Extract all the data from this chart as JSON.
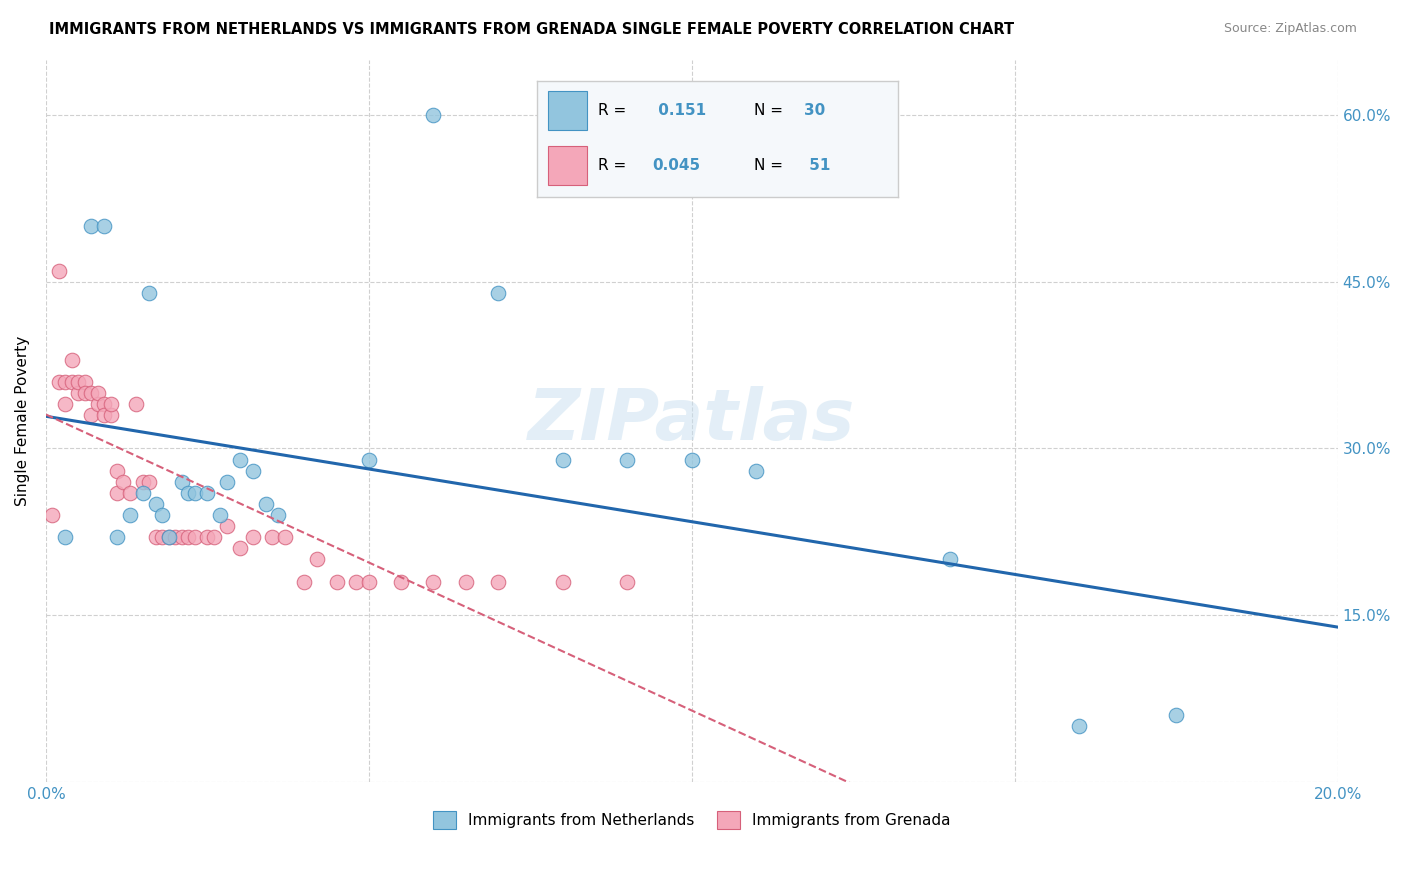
{
  "title": "IMMIGRANTS FROM NETHERLANDS VS IMMIGRANTS FROM GRENADA SINGLE FEMALE POVERTY CORRELATION CHART",
  "source": "Source: ZipAtlas.com",
  "ylabel": "Single Female Poverty",
  "x_min": 0.0,
  "x_max": 0.2,
  "y_min": 0.0,
  "y_max": 0.65,
  "x_tick_positions": [
    0.0,
    0.05,
    0.1,
    0.15,
    0.2
  ],
  "x_tick_labels": [
    "0.0%",
    "",
    "",
    "",
    "20.0%"
  ],
  "y_tick_positions": [
    0.0,
    0.15,
    0.3,
    0.45,
    0.6
  ],
  "y_tick_labels_right": [
    "",
    "15.0%",
    "30.0%",
    "45.0%",
    "60.0%"
  ],
  "netherlands_R": "0.151",
  "netherlands_N": "30",
  "grenada_R": "0.045",
  "grenada_N": "51",
  "blue_fill": "#92c5de",
  "blue_edge": "#4393c3",
  "pink_fill": "#f4a7b9",
  "pink_edge": "#d6607a",
  "blue_line_color": "#2166ac",
  "pink_line_color": "#d6607a",
  "tick_color": "#4393c3",
  "watermark_text": "ZIPatlas",
  "watermark_color": "#c8dff0",
  "legend_label_1": "Immigrants from Netherlands",
  "legend_label_2": "Immigrants from Grenada",
  "netherlands_x": [
    0.003,
    0.007,
    0.009,
    0.011,
    0.013,
    0.015,
    0.016,
    0.017,
    0.018,
    0.019,
    0.021,
    0.022,
    0.023,
    0.025,
    0.027,
    0.028,
    0.03,
    0.032,
    0.034,
    0.036,
    0.05,
    0.06,
    0.07,
    0.08,
    0.09,
    0.1,
    0.11,
    0.14,
    0.16,
    0.175
  ],
  "netherlands_y": [
    0.22,
    0.5,
    0.5,
    0.22,
    0.24,
    0.26,
    0.44,
    0.25,
    0.24,
    0.22,
    0.27,
    0.26,
    0.26,
    0.26,
    0.24,
    0.27,
    0.29,
    0.28,
    0.25,
    0.24,
    0.29,
    0.6,
    0.44,
    0.29,
    0.29,
    0.29,
    0.28,
    0.2,
    0.05,
    0.06
  ],
  "grenada_x": [
    0.001,
    0.002,
    0.002,
    0.003,
    0.003,
    0.004,
    0.004,
    0.005,
    0.005,
    0.006,
    0.006,
    0.007,
    0.007,
    0.008,
    0.008,
    0.009,
    0.009,
    0.01,
    0.01,
    0.011,
    0.011,
    0.012,
    0.013,
    0.014,
    0.015,
    0.016,
    0.017,
    0.018,
    0.019,
    0.02,
    0.021,
    0.022,
    0.023,
    0.025,
    0.026,
    0.028,
    0.03,
    0.032,
    0.035,
    0.037,
    0.04,
    0.042,
    0.045,
    0.048,
    0.05,
    0.055,
    0.06,
    0.065,
    0.07,
    0.08,
    0.09
  ],
  "grenada_y": [
    0.24,
    0.36,
    0.46,
    0.34,
    0.36,
    0.36,
    0.38,
    0.35,
    0.36,
    0.36,
    0.35,
    0.35,
    0.33,
    0.34,
    0.35,
    0.34,
    0.33,
    0.33,
    0.34,
    0.28,
    0.26,
    0.27,
    0.26,
    0.34,
    0.27,
    0.27,
    0.22,
    0.22,
    0.22,
    0.22,
    0.22,
    0.22,
    0.22,
    0.22,
    0.22,
    0.23,
    0.21,
    0.22,
    0.22,
    0.22,
    0.18,
    0.2,
    0.18,
    0.18,
    0.18,
    0.18,
    0.18,
    0.18,
    0.18,
    0.18,
    0.18
  ]
}
